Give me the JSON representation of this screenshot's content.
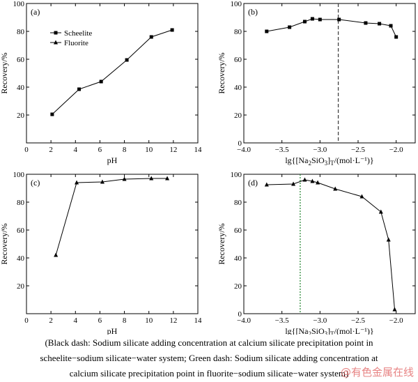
{
  "chart_data": [
    {
      "type": "line",
      "panel_label": "(a)",
      "xlabel": "pH",
      "ylabel": "Recovery/%",
      "xlim": [
        0,
        14
      ],
      "ylim": [
        0,
        100
      ],
      "xticks": [
        0,
        2,
        4,
        6,
        8,
        10,
        12,
        14
      ],
      "xtick_labels": [
        "0",
        "2",
        "4",
        "6",
        "8",
        "10",
        "12",
        "14"
      ],
      "yticks": [
        0,
        20,
        40,
        60,
        80,
        100
      ],
      "ytick_labels": [
        "",
        "20",
        "40",
        "60",
        "80",
        "100"
      ],
      "legend": {
        "position": "top-left",
        "entries": [
          {
            "name": "Scheelite",
            "marker": "square"
          },
          {
            "name": "Fluorite",
            "marker": "triangle"
          }
        ]
      },
      "series": [
        {
          "name": "Scheelite",
          "marker": "square",
          "x": [
            2.1,
            4.3,
            6.1,
            8.2,
            10.2,
            11.9
          ],
          "y": [
            20.5,
            38.5,
            44,
            59.5,
            76,
            81
          ]
        }
      ],
      "grid": false
    },
    {
      "type": "line",
      "panel_label": "(b)",
      "xlabel": "lg{[Na2SiO3]T/(mol·L⁻¹)}",
      "ylabel": "Recovery/%",
      "xlim": [
        -4.0,
        -1.75
      ],
      "ylim": [
        0,
        100
      ],
      "xticks": [
        -4.0,
        -3.5,
        -3.0,
        -2.5,
        -2.0
      ],
      "xtick_labels": [
        "−4.0",
        "−3.5",
        "−3.0",
        "−2.5",
        "−2.0"
      ],
      "yticks": [
        0,
        20,
        40,
        60,
        80,
        100
      ],
      "ytick_labels": [
        "0",
        "20",
        "40",
        "60",
        "80",
        "100"
      ],
      "vline": {
        "x": -2.76,
        "color": "#444444",
        "style": "dashed"
      },
      "series": [
        {
          "name": "Scheelite",
          "marker": "square",
          "x": [
            -3.7,
            -3.4,
            -3.2,
            -3.1,
            -3.0,
            -2.75,
            -2.4,
            -2.22,
            -2.07,
            -2.0
          ],
          "y": [
            80,
            83,
            87,
            89,
            88.5,
            88.5,
            86,
            85.5,
            84,
            76
          ]
        }
      ],
      "grid": false
    },
    {
      "type": "line",
      "panel_label": "(c)",
      "xlabel": "pH",
      "ylabel": "Recovery/%",
      "xlim": [
        0,
        14
      ],
      "ylim": [
        0,
        100
      ],
      "xticks": [
        0,
        2,
        4,
        6,
        8,
        10,
        12,
        14
      ],
      "xtick_labels": [
        "0",
        "2",
        "4",
        "6",
        "8",
        "10",
        "12",
        "14"
      ],
      "yticks": [
        0,
        20,
        40,
        60,
        80,
        100
      ],
      "ytick_labels": [
        "",
        "20",
        "40",
        "60",
        "80",
        "100"
      ],
      "series": [
        {
          "name": "Fluorite",
          "marker": "triangle",
          "x": [
            2.4,
            4.1,
            6.2,
            8.0,
            10.2,
            11.5
          ],
          "y": [
            42,
            94,
            94.5,
            96.5,
            97,
            97
          ]
        }
      ],
      "grid": false
    },
    {
      "type": "line",
      "panel_label": "(d)",
      "xlabel": "lg{[Na2SiO3]T/(mol·L⁻¹)}",
      "ylabel": "Recovery/%",
      "xlim": [
        -4.0,
        -1.75
      ],
      "ylim": [
        0,
        100
      ],
      "xticks": [
        -4.0,
        -3.5,
        -3.0,
        -2.5,
        -2.0
      ],
      "xtick_labels": [
        "−4.0",
        "−3.5",
        "−3.0",
        "−2.5",
        "−2.0"
      ],
      "yticks": [
        0,
        20,
        40,
        60,
        80,
        100
      ],
      "ytick_labels": [
        "0",
        "20",
        "40",
        "60",
        "80",
        "100"
      ],
      "vline": {
        "x": -3.26,
        "color": "#2e8b3a",
        "style": "dotted"
      },
      "series": [
        {
          "name": "Fluorite",
          "marker": "triangle",
          "x": [
            -3.7,
            -3.35,
            -3.2,
            -3.1,
            -3.03,
            -2.8,
            -2.45,
            -2.2,
            -2.1,
            -2.02
          ],
          "y": [
            92.5,
            93,
            96,
            95,
            94,
            89.5,
            84,
            73,
            53,
            3
          ]
        }
      ],
      "grid": false
    }
  ],
  "caption": {
    "lines": [
      "(Black dash: Sodium silicate adding concentration at calcium silicate precipitation point in",
      "scheelite−sodium silicate−water system; Green dash: Sodium silicate adding concentration at",
      "calcium silicate precipitation point in fluorite−sodium silicate−water system)"
    ]
  },
  "watermark": "@有色金属在线"
}
